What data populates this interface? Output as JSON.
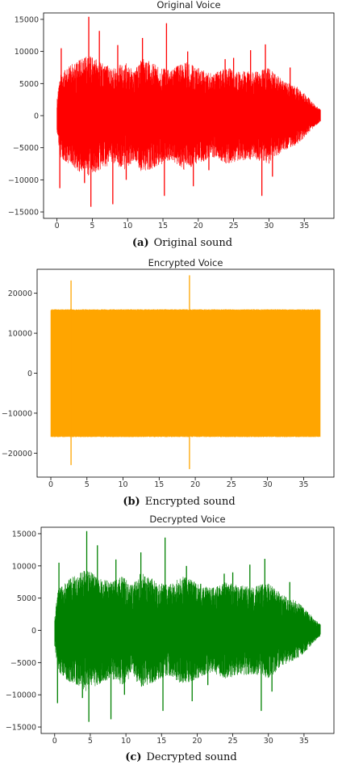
{
  "chart_data": [
    {
      "type": "line",
      "title": "Original Voice",
      "caption_label": "(a)",
      "caption_text": "Original sound",
      "color": "#ff0000",
      "x_range": [
        0,
        37.3
      ],
      "xlim": [
        -1.9,
        39.2
      ],
      "xticks": [
        "0",
        "5",
        "10",
        "15",
        "20",
        "25",
        "30",
        "35"
      ],
      "ylim": [
        -16000,
        16000
      ],
      "yticks": [
        "−15000",
        "−10000",
        "−5000",
        "0",
        "5000",
        "10000",
        "15000"
      ],
      "ytick_values": [
        -15000,
        -10000,
        -5000,
        0,
        5000,
        10000,
        15000
      ],
      "envelope": [
        [
          0.0,
          2500
        ],
        [
          0.5,
          6500
        ],
        [
          2.0,
          8000
        ],
        [
          4.5,
          9500
        ],
        [
          6.0,
          8500
        ],
        [
          8.0,
          7500
        ],
        [
          9.5,
          8500
        ],
        [
          11.0,
          7000
        ],
        [
          12.0,
          9000
        ],
        [
          14.0,
          8000
        ],
        [
          16.0,
          7000
        ],
        [
          18.0,
          8500
        ],
        [
          20.0,
          7500
        ],
        [
          22.0,
          6500
        ],
        [
          24.0,
          7500
        ],
        [
          26.0,
          7000
        ],
        [
          28.0,
          6800
        ],
        [
          30.0,
          7500
        ],
        [
          32.0,
          5500
        ],
        [
          34.0,
          4500
        ],
        [
          35.5,
          3000
        ],
        [
          36.5,
          1700
        ],
        [
          37.3,
          1000
        ]
      ],
      "peaks": [
        [
          0.2,
          3000
        ],
        [
          0.4,
          -11300
        ],
        [
          0.6,
          10500
        ],
        [
          1.2,
          -7000
        ],
        [
          3.9,
          -10500
        ],
        [
          4.5,
          15400
        ],
        [
          4.8,
          -14200
        ],
        [
          6.0,
          13200
        ],
        [
          6.6,
          -7000
        ],
        [
          7.9,
          -13800
        ],
        [
          8.6,
          11000
        ],
        [
          9.8,
          -10000
        ],
        [
          12.1,
          12100
        ],
        [
          13.8,
          -8000
        ],
        [
          15.2,
          -12500
        ],
        [
          15.5,
          14400
        ],
        [
          18.5,
          10000
        ],
        [
          19.3,
          -11000
        ],
        [
          21.5,
          -8500
        ],
        [
          23.8,
          8800
        ],
        [
          25.0,
          9000
        ],
        [
          27.4,
          10200
        ],
        [
          29.0,
          -12500
        ],
        [
          29.5,
          11100
        ],
        [
          30.5,
          -9500
        ],
        [
          33.0,
          7500
        ]
      ]
    },
    {
      "type": "line",
      "title": "Encrypted Voice",
      "caption_label": "(b)",
      "caption_text": "Encrypted sound",
      "color": "#ffa500",
      "x_range": [
        0,
        37.3
      ],
      "xlim": [
        -1.9,
        39.2
      ],
      "xticks": [
        "0",
        "5",
        "10",
        "15",
        "20",
        "25",
        "30",
        "35"
      ],
      "ylim": [
        -26000,
        26000
      ],
      "yticks": [
        "−20000",
        "−10000",
        "0",
        "10000",
        "20000"
      ],
      "ytick_values": [
        -20000,
        -10000,
        0,
        10000,
        20000
      ],
      "envelope": [
        [
          0.0,
          16000
        ],
        [
          37.3,
          16000
        ]
      ],
      "peaks": [
        [
          2.8,
          23200
        ],
        [
          2.8,
          -23000
        ],
        [
          19.2,
          24500
        ],
        [
          19.2,
          -24000
        ]
      ]
    },
    {
      "type": "line",
      "title": "Decrypted Voice",
      "caption_label": "(c)",
      "caption_text": "Decrypted sound",
      "color": "#008000",
      "x_range": [
        0,
        37.3
      ],
      "xlim": [
        -1.9,
        39.2
      ],
      "xticks": [
        "0",
        "5",
        "10",
        "15",
        "20",
        "25",
        "30",
        "35"
      ],
      "ylim": [
        -16000,
        16000
      ],
      "yticks": [
        "−15000",
        "−10000",
        "−5000",
        "0",
        "5000",
        "10000",
        "15000"
      ],
      "ytick_values": [
        -15000,
        -10000,
        -5000,
        0,
        5000,
        10000,
        15000
      ],
      "envelope": [
        [
          0.0,
          2500
        ],
        [
          0.5,
          6500
        ],
        [
          2.0,
          8000
        ],
        [
          4.5,
          9500
        ],
        [
          6.0,
          8500
        ],
        [
          8.0,
          7500
        ],
        [
          9.5,
          8500
        ],
        [
          11.0,
          7000
        ],
        [
          12.0,
          9000
        ],
        [
          14.0,
          8000
        ],
        [
          16.0,
          7000
        ],
        [
          18.0,
          8500
        ],
        [
          20.0,
          7500
        ],
        [
          22.0,
          6500
        ],
        [
          24.0,
          7500
        ],
        [
          26.0,
          7000
        ],
        [
          28.0,
          6800
        ],
        [
          30.0,
          7500
        ],
        [
          32.0,
          5500
        ],
        [
          34.0,
          4500
        ],
        [
          35.5,
          3000
        ],
        [
          36.5,
          1700
        ],
        [
          37.3,
          1000
        ]
      ],
      "peaks": [
        [
          0.2,
          3000
        ],
        [
          0.4,
          -11300
        ],
        [
          0.6,
          10500
        ],
        [
          1.2,
          -7000
        ],
        [
          3.9,
          -10500
        ],
        [
          4.5,
          15400
        ],
        [
          4.8,
          -14200
        ],
        [
          6.0,
          13200
        ],
        [
          6.6,
          -7000
        ],
        [
          7.9,
          -13800
        ],
        [
          8.6,
          11000
        ],
        [
          9.8,
          -10000
        ],
        [
          12.1,
          12100
        ],
        [
          13.8,
          -8000
        ],
        [
          15.2,
          -12500
        ],
        [
          15.5,
          14400
        ],
        [
          18.5,
          10000
        ],
        [
          19.3,
          -11000
        ],
        [
          21.5,
          -8500
        ],
        [
          23.8,
          8800
        ],
        [
          25.0,
          9000
        ],
        [
          27.4,
          10200
        ],
        [
          29.0,
          -12500
        ],
        [
          29.5,
          11100
        ],
        [
          30.5,
          -9500
        ],
        [
          33.0,
          7500
        ]
      ]
    }
  ]
}
